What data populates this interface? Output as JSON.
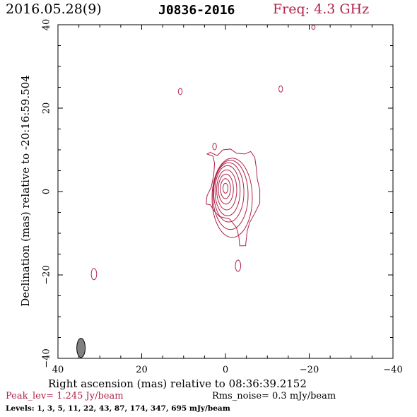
{
  "header": {
    "date": "2016.05.28(9)",
    "source": "J0836-2016",
    "freq": "Freq: 4.3 GHz"
  },
  "colors": {
    "contour": "#b0234a",
    "beam": "#808080",
    "text": "#000000"
  },
  "chart_data": {
    "type": "contour",
    "xlabel": "Right ascension (mas) relative to 08:36:39.2152",
    "ylabel": "Declination (mas) relative to -20:16:59.504",
    "xlim": [
      40,
      -40
    ],
    "ylim": [
      -40,
      40
    ],
    "xticks": [
      40,
      20,
      0,
      -20,
      -40
    ],
    "yticks": [
      -40,
      -20,
      0,
      20,
      40
    ],
    "xtick_labels": [
      "40",
      "20",
      "0",
      "−20",
      "−40"
    ],
    "ytick_labels": [
      "−40",
      "−20",
      "0",
      "20",
      "40"
    ],
    "peak": "Peak_lev=  1.245 Jy/beam",
    "rms": "Rms_noise=  0.3 mJy/beam",
    "levels_text": "Levels:  1,  3,  5,  11,  22,  43,  87,  174,  347,  695 mJy/beam",
    "levels_mJy": [
      1,
      3,
      5,
      11,
      22,
      43,
      87,
      174,
      347,
      695
    ],
    "beam": {
      "x": 34.5,
      "y": -37.5,
      "major": 4.6,
      "minor": 2.0,
      "pa_deg": 0
    },
    "core_contours": [
      {
        "cx": -1.6,
        "cy": -1.5,
        "rx": 4.8,
        "ry": 9.5
      },
      {
        "cx": -1.2,
        "cy": -0.8,
        "rx": 4.2,
        "ry": 8.3
      },
      {
        "cx": -0.8,
        "cy": -0.2,
        "rx": 3.6,
        "ry": 7.1
      },
      {
        "cx": -0.5,
        "cy": 0.2,
        "rx": 3.0,
        "ry": 6.0
      },
      {
        "cx": -0.3,
        "cy": 0.4,
        "rx": 2.4,
        "ry": 4.8
      },
      {
        "cx": -0.1,
        "cy": 0.6,
        "rx": 1.8,
        "ry": 3.6
      },
      {
        "cx": 0.0,
        "cy": 0.7,
        "rx": 1.2,
        "ry": 2.4
      },
      {
        "cx": 0.0,
        "cy": 0.8,
        "rx": 0.6,
        "ry": 1.2
      }
    ],
    "outer_contours": [
      [
        [
          4.4,
          9.0
        ],
        [
          3.0,
          8.5
        ],
        [
          2.6,
          6.8
        ],
        [
          2.8,
          4.0
        ],
        [
          3.4,
          1.0
        ],
        [
          4.4,
          -1.0
        ],
        [
          4.6,
          -3.0
        ],
        [
          3.6,
          -3.2
        ],
        [
          2.6,
          -4.8
        ],
        [
          1.4,
          -6.0
        ],
        [
          -1.0,
          -6.6
        ],
        [
          -2.6,
          -8.6
        ],
        [
          -3.2,
          -10.8
        ],
        [
          -3.4,
          -13.0
        ],
        [
          -4.8,
          -13.0
        ],
        [
          -5.2,
          -9.4
        ],
        [
          -5.8,
          -7.4
        ],
        [
          -7.0,
          -5.2
        ],
        [
          -8.2,
          -2.8
        ],
        [
          -8.2,
          0.4
        ],
        [
          -7.6,
          3.0
        ],
        [
          -7.4,
          5.4
        ],
        [
          -7.0,
          8.2
        ],
        [
          -6.0,
          9.6
        ],
        [
          -4.6,
          9.0
        ],
        [
          -2.6,
          9.2
        ],
        [
          -1.2,
          10.2
        ],
        [
          0.6,
          10.0
        ],
        [
          2.0,
          8.6
        ],
        [
          3.6,
          9.4
        ],
        [
          4.4,
          9.0
        ]
      ]
    ],
    "small_blobs": [
      {
        "x": 2.6,
        "y": 10.8,
        "rx": 0.45,
        "ry": 0.8
      },
      {
        "x": 10.8,
        "y": 24.0,
        "rx": 0.45,
        "ry": 0.75
      },
      {
        "x": -13.2,
        "y": 24.6,
        "rx": 0.45,
        "ry": 0.75
      },
      {
        "x": -21.0,
        "y": 39.4,
        "rx": 0.4,
        "ry": 0.5
      },
      {
        "x": 31.4,
        "y": -19.8,
        "rx": 0.65,
        "ry": 1.35
      },
      {
        "x": -3.0,
        "y": -17.8,
        "rx": 0.65,
        "ry": 1.35
      }
    ]
  }
}
